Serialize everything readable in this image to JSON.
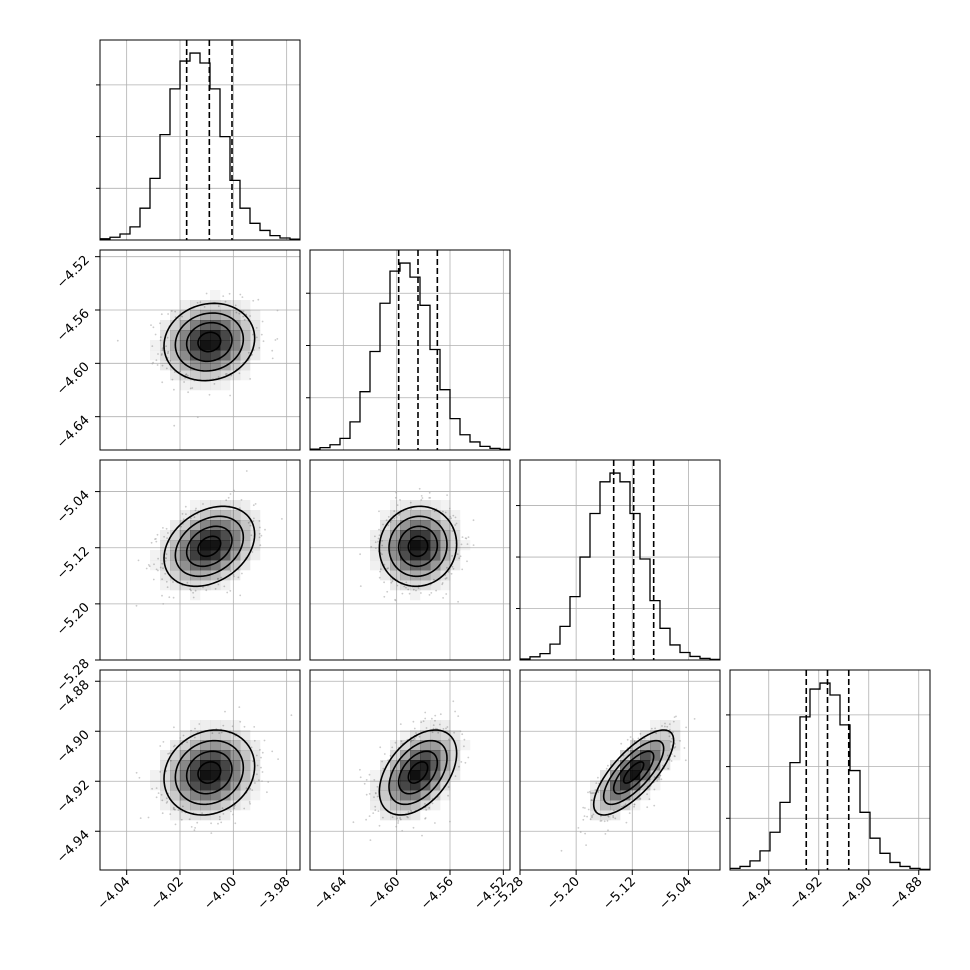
{
  "chart_data": {
    "type": "corner",
    "grid": true,
    "n_params": 4,
    "params": [
      {
        "center": -4.009,
        "sigma": 0.0085,
        "q16": -4.0175,
        "q50": -4.009,
        "q84": -4.0005,
        "range": [
          -4.05,
          -3.975
        ],
        "ticks": [
          -4.04,
          -4.02,
          -4.0,
          -3.98
        ],
        "tick_labels": [
          "−4.04",
          "−4.02",
          "−4.00",
          "−3.98"
        ]
      },
      {
        "center": -4.584,
        "sigma": 0.0145,
        "q16": -4.5985,
        "q50": -4.584,
        "q84": -4.5695,
        "range": [
          -4.665,
          -4.515
        ],
        "ticks": [
          -4.64,
          -4.6,
          -4.56,
          -4.52
        ],
        "tick_labels": [
          "−4.64",
          "−4.60",
          "−4.56",
          "−4.52"
        ]
      },
      {
        "center": -5.118,
        "sigma": 0.0285,
        "q16": -5.1465,
        "q50": -5.118,
        "q84": -5.0895,
        "range": [
          -5.28,
          -4.995
        ],
        "ticks": [
          -5.28,
          -5.2,
          -5.12,
          -5.04
        ],
        "tick_labels": [
          "−5.28",
          "−5.20",
          "−5.12",
          "−5.04"
        ]
      },
      {
        "center": -4.9165,
        "sigma": 0.0085,
        "q16": -4.925,
        "q50": -4.9165,
        "q84": -4.908,
        "range": [
          -4.9555,
          -4.8755
        ],
        "ticks": [
          -4.94,
          -4.92,
          -4.9,
          -4.88
        ],
        "tick_labels": [
          "−4.94",
          "−4.92",
          "−4.90",
          "−4.88"
        ]
      }
    ],
    "histograms": [
      {
        "param": 0,
        "bins": 20,
        "values": [
          30,
          70,
          150,
          330,
          800,
          1550,
          2650,
          3800,
          4500,
          4700,
          4450,
          3800,
          2600,
          1500,
          800,
          420,
          240,
          110,
          50,
          20
        ]
      },
      {
        "param": 1,
        "bins": 20,
        "values": [
          20,
          60,
          130,
          290,
          700,
          1450,
          2450,
          3650,
          4450,
          4650,
          4300,
          3600,
          2500,
          1500,
          780,
          380,
          200,
          90,
          40,
          15
        ]
      },
      {
        "param": 2,
        "bins": 20,
        "values": [
          25,
          80,
          160,
          400,
          850,
          1600,
          2600,
          3700,
          4500,
          4720,
          4500,
          3700,
          2550,
          1500,
          800,
          380,
          190,
          90,
          40,
          15
        ]
      },
      {
        "param": 3,
        "bins": 20,
        "values": [
          40,
          90,
          230,
          480,
          950,
          1700,
          2700,
          3850,
          4550,
          4700,
          4400,
          3650,
          2500,
          1450,
          800,
          420,
          190,
          90,
          40,
          15
        ]
      }
    ],
    "correlations": [
      {
        "pair": [
          1,
          0
        ],
        "rho": 0.1
      },
      {
        "pair": [
          2,
          0
        ],
        "rho": 0.3
      },
      {
        "pair": [
          2,
          1
        ],
        "rho": 0.05
      },
      {
        "pair": [
          3,
          0
        ],
        "rho": 0.15
      },
      {
        "pair": [
          3,
          1
        ],
        "rho": 0.45
      },
      {
        "pair": [
          3,
          2
        ],
        "rho": 0.75
      }
    ],
    "contour_sigmas": [
      0.5,
      1.0,
      1.5,
      2.0
    ],
    "colors": {
      "line": "#000000",
      "grid": "#b0b0b0",
      "points": "#a0a0a0",
      "density": "#000000"
    }
  }
}
